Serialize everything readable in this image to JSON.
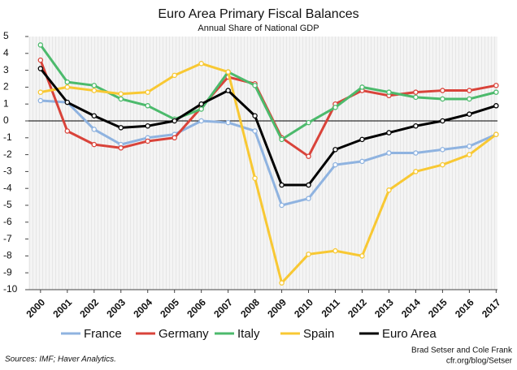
{
  "chart_data": {
    "type": "line",
    "title": "Euro Area Primary Fiscal Balances",
    "subtitle": "Annual Share of National GDP",
    "source": "Sources: IMF; Haver Analytics.",
    "credit": [
      "Brad Setser and Cole Frank",
      "cfr.org/blog/Setser"
    ],
    "x": [
      2000,
      2001,
      2002,
      2003,
      2004,
      2005,
      2006,
      2007,
      2008,
      2009,
      2010,
      2011,
      2012,
      2013,
      2014,
      2015,
      2016,
      2017
    ],
    "xlim": [
      1999.55,
      2017.05
    ],
    "xticks": [
      2000,
      2001,
      2002,
      2003,
      2004,
      2005,
      2006,
      2007,
      2008,
      2009,
      2010,
      2011,
      2012,
      2013,
      2014,
      2015,
      2016,
      2017
    ],
    "ylim": [
      -10,
      5
    ],
    "yticks": [
      -10,
      -9,
      -8,
      -7,
      -6,
      -5,
      -4,
      -3,
      -2,
      -1,
      0,
      1,
      2,
      3,
      4,
      5
    ],
    "series": [
      {
        "name": "France",
        "color": "#8fb3e0",
        "values": [
          1.2,
          1.1,
          -0.5,
          -1.4,
          -1.0,
          -0.8,
          0.0,
          -0.1,
          -0.6,
          -5.0,
          -4.6,
          -2.6,
          -2.4,
          -1.9,
          -1.9,
          -1.7,
          -1.5,
          -0.8
        ]
      },
      {
        "name": "Germany",
        "color": "#d9433a",
        "values": [
          3.6,
          -0.6,
          -1.4,
          -1.6,
          -1.2,
          -1.0,
          0.8,
          2.6,
          2.2,
          -1.0,
          -2.1,
          1.0,
          1.8,
          1.5,
          1.7,
          1.8,
          1.8,
          2.1
        ]
      },
      {
        "name": "Italy",
        "color": "#4cba6c",
        "values": [
          4.5,
          2.3,
          2.1,
          1.3,
          0.9,
          0.1,
          0.7,
          2.9,
          2.1,
          -1.1,
          -0.1,
          0.8,
          2.0,
          1.7,
          1.4,
          1.3,
          1.3,
          1.7
        ]
      },
      {
        "name": "Spain",
        "color": "#f8c833",
        "values": [
          1.7,
          2.0,
          1.8,
          1.6,
          1.7,
          2.7,
          3.4,
          2.9,
          -3.4,
          -9.6,
          -7.9,
          -7.7,
          -8.0,
          -4.1,
          -3.0,
          -2.6,
          -2.0,
          -0.8
        ]
      },
      {
        "name": "Euro Area",
        "color": "#000000",
        "values": [
          3.1,
          1.1,
          0.3,
          -0.4,
          -0.3,
          0.0,
          1.0,
          1.8,
          0.3,
          -3.8,
          -3.8,
          -1.7,
          -1.1,
          -0.7,
          -0.3,
          0.0,
          0.4,
          0.9
        ]
      }
    ]
  }
}
